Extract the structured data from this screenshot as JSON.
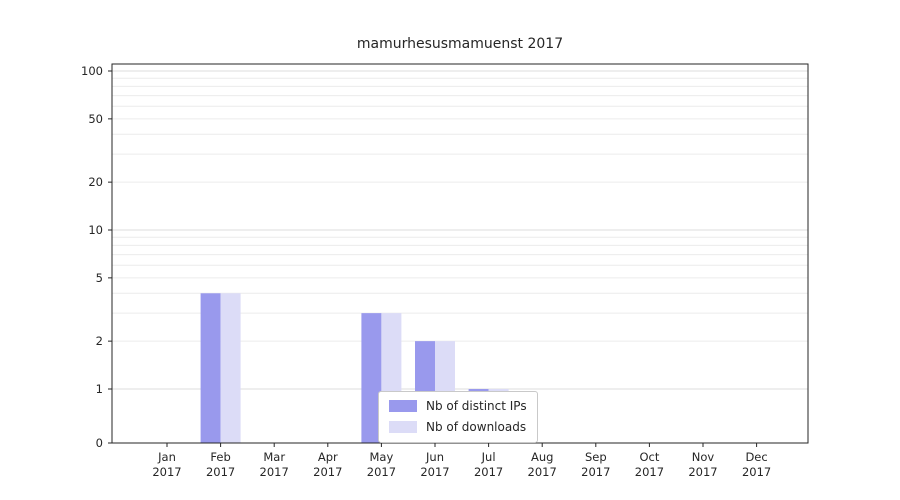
{
  "chart_data": {
    "type": "bar",
    "title": "mamurhesusmamuenst 2017",
    "categories": [
      "Jan",
      "Feb",
      "Mar",
      "Apr",
      "May",
      "Jun",
      "Jul",
      "Aug",
      "Sep",
      "Oct",
      "Nov",
      "Dec"
    ],
    "year_label": "2017",
    "series": [
      {
        "name": "Nb of distinct IPs",
        "color": "#9999ed",
        "values": [
          0,
          4,
          0,
          0,
          3,
          2,
          1,
          0,
          0,
          0,
          0,
          0
        ]
      },
      {
        "name": "Nb of downloads",
        "color": "#dcdcf7",
        "values": [
          0,
          4,
          0,
          0,
          3,
          2,
          1,
          0,
          0,
          0,
          0,
          0
        ]
      }
    ],
    "yscale": "log",
    "ylim": [
      0,
      100
    ],
    "yticks": [
      100,
      50,
      20,
      10,
      5,
      2,
      1,
      0
    ],
    "grid": "horizontal, log minor + major gridlines",
    "legend_position": "inside bottom-center",
    "axis_color": "#262626",
    "gridline_minor_color": "#ececec",
    "gridline_major_color": "#dddddd"
  }
}
